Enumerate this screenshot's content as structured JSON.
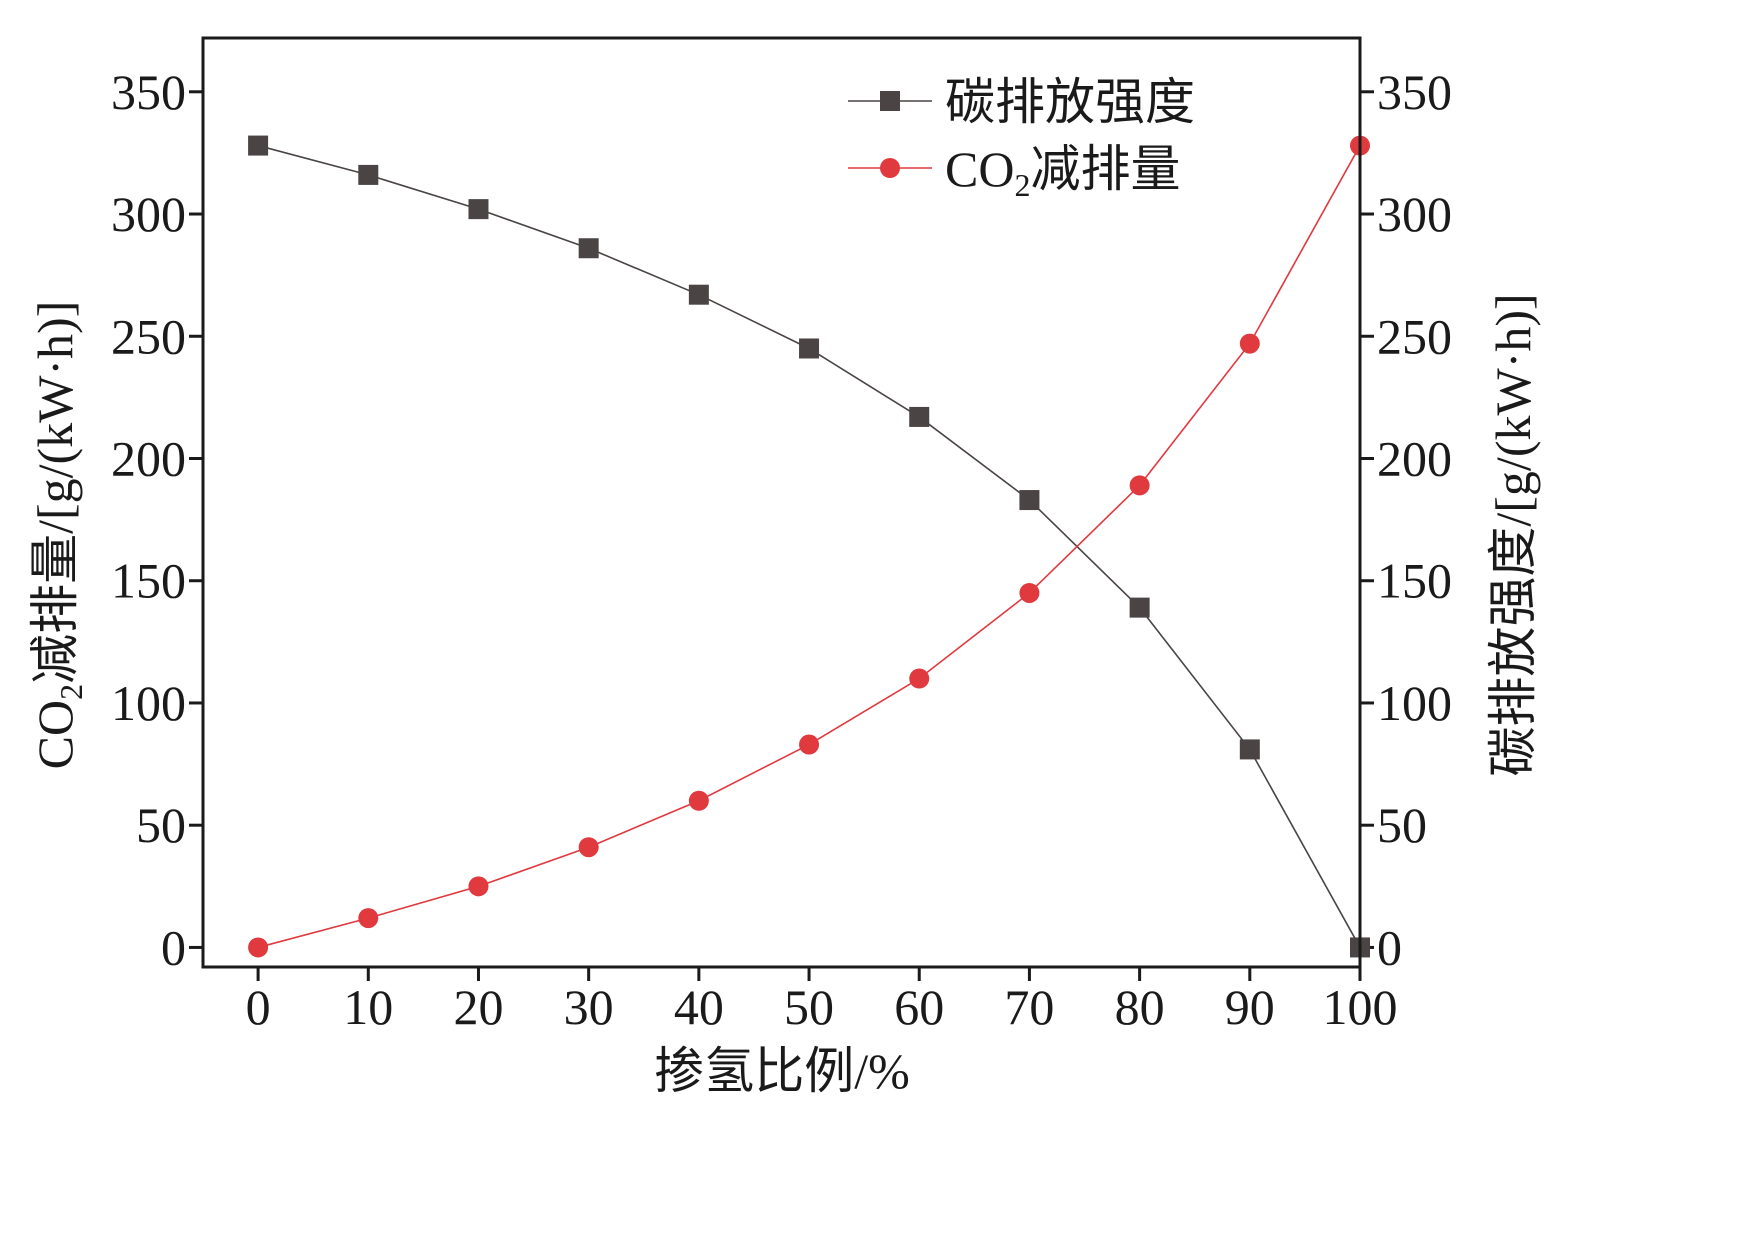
{
  "chart_data": {
    "type": "line",
    "xlabel": "掺氢比例/%",
    "ylabel_left": {
      "base": "CO",
      "sub": "2",
      "rest": "减排量/[g/(kW·h)]"
    },
    "ylabel_right": "碳排放强度/[g/(kW·h)]",
    "x": [
      0,
      10,
      20,
      30,
      40,
      50,
      60,
      70,
      80,
      90,
      100
    ],
    "xlim": [
      -5,
      100
    ],
    "ylim": [
      -8,
      372
    ],
    "x_ticks": [
      0,
      10,
      20,
      30,
      40,
      50,
      60,
      70,
      80,
      90,
      100
    ],
    "y_ticks": [
      0,
      50,
      100,
      150,
      200,
      250,
      300,
      350
    ],
    "grid": false,
    "legend_position": "top-right",
    "series": [
      {
        "name": "碳排放强度",
        "axis": "right",
        "marker": "square",
        "color": "#4a4444",
        "values": [
          328,
          316,
          302,
          286,
          267,
          245,
          217,
          183,
          139,
          81,
          0
        ]
      },
      {
        "name": {
          "base": "CO",
          "sub": "2",
          "rest": "减排量"
        },
        "axis": "left",
        "marker": "circle",
        "color": "#e0393e",
        "values": [
          0,
          12,
          25,
          41,
          60,
          83,
          110,
          145,
          189,
          247,
          328
        ]
      }
    ]
  }
}
